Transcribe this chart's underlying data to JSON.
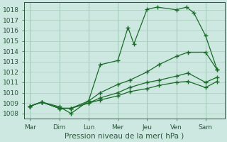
{
  "xlabel": "Pression niveau de la mer( hPa )",
  "background_color": "#cce8e0",
  "grid_color": "#aaccbb",
  "line_color": "#1a6b2a",
  "xlabels": [
    "Mar",
    "Dim",
    "Lun",
    "Mer",
    "Jeu",
    "Ven",
    "Sam"
  ],
  "ylim": [
    1007.5,
    1018.7
  ],
  "yticks": [
    1008,
    1009,
    1010,
    1011,
    1012,
    1013,
    1014,
    1015,
    1016,
    1017,
    1018
  ],
  "series": [
    {
      "x": [
        0,
        0.4,
        1.0,
        1.4,
        2.0,
        2.4,
        3.0,
        3.35,
        3.55,
        4.0,
        4.35,
        5.0,
        5.35,
        5.6,
        6.0,
        6.4
      ],
      "y": [
        1008.7,
        1009.1,
        1008.65,
        1008.0,
        1009.2,
        1012.7,
        1013.1,
        1016.3,
        1014.7,
        1018.05,
        1018.25,
        1018.0,
        1018.25,
        1017.7,
        1015.5,
        1012.2
      ]
    },
    {
      "x": [
        0,
        0.4,
        1.0,
        1.4,
        2.0,
        2.4,
        3.0,
        3.4,
        4.0,
        4.4,
        5.0,
        5.4,
        6.0,
        6.4
      ],
      "y": [
        1008.7,
        1009.1,
        1008.5,
        1008.5,
        1009.2,
        1010.0,
        1010.8,
        1011.2,
        1012.0,
        1012.7,
        1013.5,
        1013.9,
        1013.9,
        1012.2
      ]
    },
    {
      "x": [
        0,
        0.4,
        1.0,
        1.4,
        2.0,
        2.4,
        3.0,
        3.4,
        4.0,
        4.4,
        5.0,
        5.4,
        6.0,
        6.4
      ],
      "y": [
        1008.7,
        1009.1,
        1008.5,
        1008.5,
        1009.0,
        1009.5,
        1010.0,
        1010.5,
        1011.0,
        1011.2,
        1011.6,
        1011.9,
        1011.0,
        1011.5
      ]
    },
    {
      "x": [
        0,
        0.4,
        1.0,
        1.4,
        2.0,
        2.4,
        3.0,
        3.4,
        4.0,
        4.4,
        5.0,
        5.4,
        6.0,
        6.4
      ],
      "y": [
        1008.7,
        1009.1,
        1008.5,
        1008.5,
        1009.0,
        1009.3,
        1009.7,
        1010.1,
        1010.4,
        1010.7,
        1011.0,
        1011.1,
        1010.5,
        1011.1
      ]
    }
  ]
}
